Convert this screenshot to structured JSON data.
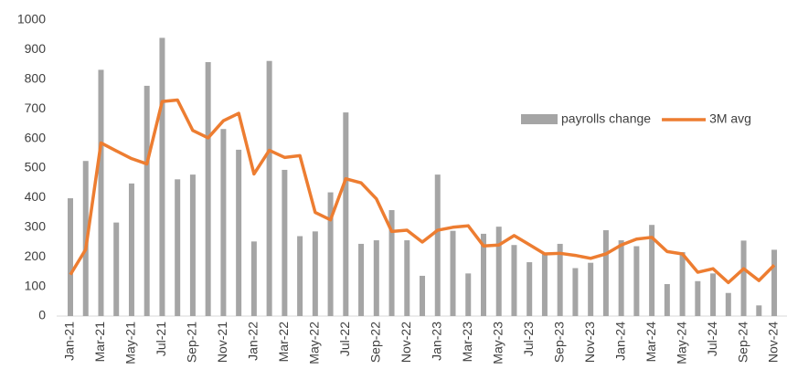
{
  "chart_data": {
    "type": "combo",
    "categories": [
      "Jan-21",
      null,
      "Mar-21",
      null,
      "May-21",
      null,
      "Jul-21",
      null,
      "Sep-21",
      null,
      "Nov-21",
      null,
      "Jan-22",
      null,
      "Mar-22",
      null,
      "May-22",
      null,
      "Jul-22",
      null,
      "Sep-22",
      null,
      "Nov-22",
      null,
      "Jan-23",
      null,
      "Mar-23",
      null,
      "May-23",
      null,
      "Jul-23",
      null,
      "Sep-23",
      null,
      "Nov-23",
      null,
      "Jan-24",
      null,
      "Mar-24",
      null,
      "May-24",
      null,
      "Jul-24",
      null,
      "Sep-24",
      null,
      "Nov-24"
    ],
    "series": [
      {
        "name": "payrolls change",
        "type": "bar",
        "color": "#a5a5a5",
        "values": [
          398,
          524,
          832,
          316,
          448,
          778,
          940,
          462,
          478,
          858,
          632,
          562,
          252,
          862,
          494,
          270,
          286,
          418,
          688,
          244,
          256,
          358,
          256,
          136,
          478,
          288,
          144,
          278,
          302,
          240,
          182,
          210,
          244,
          162,
          180,
          290,
          256,
          236,
          308,
          108,
          216,
          118,
          144,
          78,
          255,
          36,
          224
        ]
      },
      {
        "name": "3M avg",
        "type": "line",
        "color": "#ed7d31",
        "values": [
          140,
          225,
          585,
          558,
          532,
          514,
          725,
          730,
          627,
          602,
          660,
          685,
          480,
          560,
          536,
          542,
          350,
          325,
          464,
          450,
          396,
          286,
          290,
          250,
          290,
          300,
          305,
          237,
          240,
          272,
          241,
          210,
          212,
          205,
          195,
          210,
          240,
          260,
          266,
          218,
          210,
          148,
          160,
          113,
          160,
          120,
          172
        ]
      }
    ],
    "ylim": [
      0,
      1000
    ],
    "yticks": [
      0,
      100,
      200,
      300,
      400,
      500,
      600,
      700,
      800,
      900,
      1000
    ]
  }
}
